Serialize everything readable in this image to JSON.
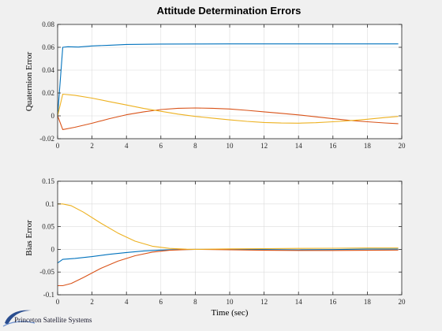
{
  "figure_title": "Attitude Determination Errors",
  "logo": {
    "text": "Princeton Satellite Systems",
    "icon": "swoosh-logo-icon"
  },
  "colors": {
    "series1": "#0072bd",
    "series2": "#d95319",
    "series3": "#edb120",
    "grid": "#dcdcdc",
    "axes": "#262626",
    "background": "#f0f0f0",
    "plot_bg": "#ffffff"
  },
  "chart_data": [
    {
      "type": "line",
      "title": "Attitude Determination Errors",
      "xlabel": "",
      "ylabel": "Quaternion Error",
      "xlim": [
        0,
        20
      ],
      "ylim": [
        -0.02,
        0.08
      ],
      "grid": true,
      "x_ticks": [
        "0",
        "2",
        "4",
        "6",
        "8",
        "10",
        "12",
        "14",
        "16",
        "18",
        "20"
      ],
      "y_ticks": [
        "-0.02",
        "0",
        "0.02",
        "0.04",
        "0.06",
        "0.08"
      ],
      "series": [
        {
          "color": "#0072bd",
          "x": [
            0,
            0.3,
            0.6,
            1.2,
            2,
            3,
            4,
            6,
            8,
            10,
            12,
            14,
            16,
            18,
            19.8
          ],
          "y": [
            0,
            0.06,
            0.0605,
            0.0602,
            0.0612,
            0.0618,
            0.0625,
            0.0628,
            0.0629,
            0.063,
            0.063,
            0.063,
            0.063,
            0.063,
            0.063
          ]
        },
        {
          "color": "#d95319",
          "x": [
            0,
            0.3,
            1,
            2,
            3,
            4,
            5,
            6,
            7,
            8,
            9,
            10,
            11,
            12,
            13,
            14,
            15,
            16,
            17,
            18,
            19,
            19.8
          ],
          "y": [
            0,
            -0.012,
            -0.01,
            -0.0065,
            -0.0025,
            0.001,
            0.0035,
            0.0055,
            0.0066,
            0.0069,
            0.0066,
            0.006,
            0.0048,
            0.0035,
            0.0022,
            0.0008,
            -0.0008,
            -0.0025,
            -0.004,
            -0.0052,
            -0.0062,
            -0.0068
          ]
        },
        {
          "color": "#edb120",
          "x": [
            0,
            0.3,
            1,
            2,
            3,
            4,
            5,
            6,
            7,
            8,
            9,
            10,
            11,
            12,
            13,
            14,
            15,
            16,
            17,
            18,
            19,
            19.8
          ],
          "y": [
            0,
            0.019,
            0.018,
            0.0155,
            0.0125,
            0.0095,
            0.0065,
            0.004,
            0.0015,
            -0.0005,
            -0.002,
            -0.0035,
            -0.0048,
            -0.0058,
            -0.0063,
            -0.0064,
            -0.006,
            -0.0052,
            -0.0042,
            -0.003,
            -0.0015,
            -0.0005
          ]
        }
      ]
    },
    {
      "type": "line",
      "title": "",
      "xlabel": "Time (sec)",
      "ylabel": "Bias Error",
      "xlim": [
        0,
        20
      ],
      "ylim": [
        -0.1,
        0.15
      ],
      "grid": true,
      "x_ticks": [
        "0",
        "2",
        "4",
        "6",
        "8",
        "10",
        "12",
        "14",
        "16",
        "18",
        "20"
      ],
      "y_ticks": [
        "-0.1",
        "-0.05",
        "0",
        "0.05",
        "0.1",
        "0.15"
      ],
      "series": [
        {
          "color": "#0072bd",
          "x": [
            0,
            0.3,
            1,
            2,
            3,
            4,
            5,
            6,
            7,
            8,
            10,
            12,
            14,
            16,
            18,
            19.8
          ],
          "y": [
            -0.03,
            -0.022,
            -0.02,
            -0.016,
            -0.011,
            -0.007,
            -0.0035,
            -0.0015,
            -0.0005,
            0,
            0,
            -0.0005,
            -0.001,
            -0.0005,
            0.0005,
            0.0005
          ]
        },
        {
          "color": "#d95319",
          "x": [
            0,
            0.3,
            0.8,
            1.5,
            2.5,
            3.5,
            4.5,
            5.5,
            6.5,
            7.5,
            8,
            10,
            12,
            14,
            16,
            18,
            19.8
          ],
          "y": [
            -0.08,
            -0.08,
            -0.075,
            -0.062,
            -0.042,
            -0.026,
            -0.014,
            -0.006,
            -0.002,
            -0.0005,
            0,
            -0.001,
            -0.002,
            -0.0025,
            -0.0025,
            -0.002,
            -0.0015
          ]
        },
        {
          "color": "#edb120",
          "x": [
            0,
            0.3,
            0.8,
            1.5,
            2.5,
            3.5,
            4.5,
            5.5,
            6.5,
            7.5,
            8,
            10,
            12,
            14,
            16,
            18,
            19.8
          ],
          "y": [
            0.1,
            0.1,
            0.096,
            0.082,
            0.058,
            0.036,
            0.018,
            0.007,
            0.002,
            0.0003,
            0,
            0.001,
            0.0015,
            0.002,
            0.0025,
            0.003,
            0.003
          ]
        }
      ]
    }
  ]
}
